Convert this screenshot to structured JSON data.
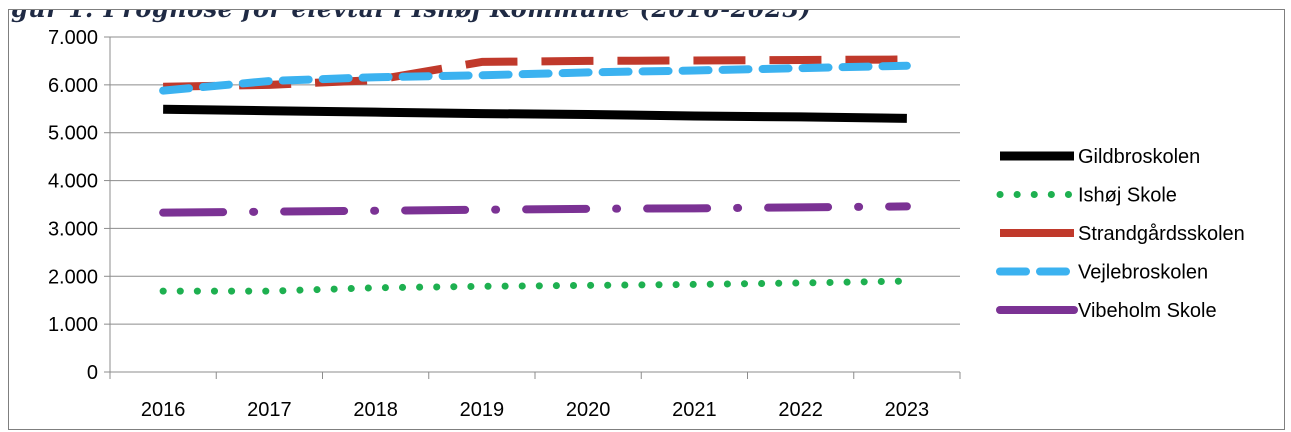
{
  "header": {
    "cut_title": "gur 1: Prognose for elevtal i Ishøj Kommune (2016-2023)"
  },
  "chart_data": {
    "type": "line",
    "title": "",
    "xlabel": "",
    "ylabel": "",
    "x": [
      "2016",
      "2017",
      "2018",
      "2019",
      "2020",
      "2021",
      "2022",
      "2023"
    ],
    "ylim": [
      0,
      7000
    ],
    "yticks": [
      "0",
      "1.000",
      "2.000",
      "3.000",
      "4.000",
      "5.000",
      "6.000",
      "7.000"
    ],
    "grid": true,
    "legend_position": "right",
    "series": [
      {
        "name": "Gildbroskolen",
        "values": [
          5490,
          5460,
          5430,
          5400,
          5380,
          5350,
          5330,
          5300
        ],
        "color": "#000000",
        "dash": "solid",
        "width": 9
      },
      {
        "name": "Ishøj Skole",
        "values": [
          1690,
          1690,
          1760,
          1790,
          1810,
          1830,
          1860,
          1900
        ],
        "color": "#1eb050",
        "dash": "dot",
        "width": 7
      },
      {
        "name": "Strandgårdsskolen",
        "values": [
          5960,
          6000,
          6100,
          6480,
          6500,
          6510,
          6520,
          6530
        ],
        "color": "#c0392b",
        "dash": "longdash",
        "width": 8
      },
      {
        "name": "Vejlebroskolen",
        "values": [
          5880,
          6080,
          6160,
          6200,
          6260,
          6300,
          6350,
          6400
        ],
        "color": "#3bb2f0",
        "dash": "dash",
        "width": 8
      },
      {
        "name": "Vibeholm Skole",
        "values": [
          3330,
          3350,
          3370,
          3390,
          3410,
          3420,
          3440,
          3460
        ],
        "color": "#7b3294",
        "dash": "dashdot",
        "width": 8
      }
    ]
  }
}
